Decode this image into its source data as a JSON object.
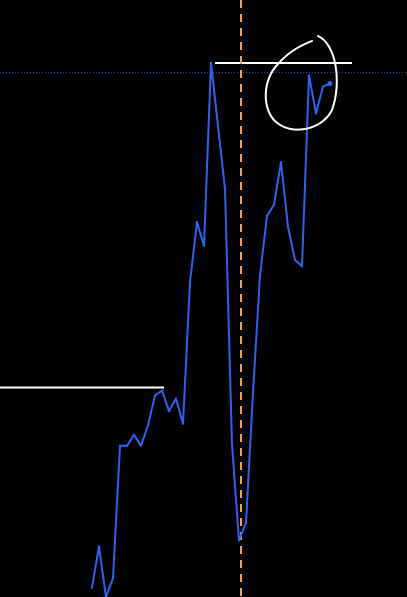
{
  "chart_data": {
    "type": "line",
    "series": [
      {
        "values": [
          -0.78,
          -0.52,
          -0.84,
          -0.72,
          0.12,
          0.12,
          0.19,
          0.12,
          0.25,
          0.44,
          0.47,
          0.34,
          0.42,
          0.26,
          1.16,
          1.54,
          1.39,
          2.55,
          2.15,
          1.75,
          0.13,
          -0.48,
          -0.37,
          0.46,
          1.2,
          1.58,
          1.65,
          1.92,
          1.51,
          1.3,
          1.26,
          2.47,
          2.23,
          2.4,
          2.42
        ]
      }
    ],
    "vertical_marker_index": 21,
    "horizontal_levels": [
      0.49,
      2.55
    ],
    "dotted_level": 2.49,
    "ylim": [
      -0.84,
      2.95
    ],
    "colors": {
      "background": "#000000",
      "line": "#2d62f2",
      "vertical_marker": "#f5a04a",
      "horizontal_levels": "#ffffff",
      "dotted_level": "#2546c8",
      "annotation": "#ffffff"
    }
  }
}
